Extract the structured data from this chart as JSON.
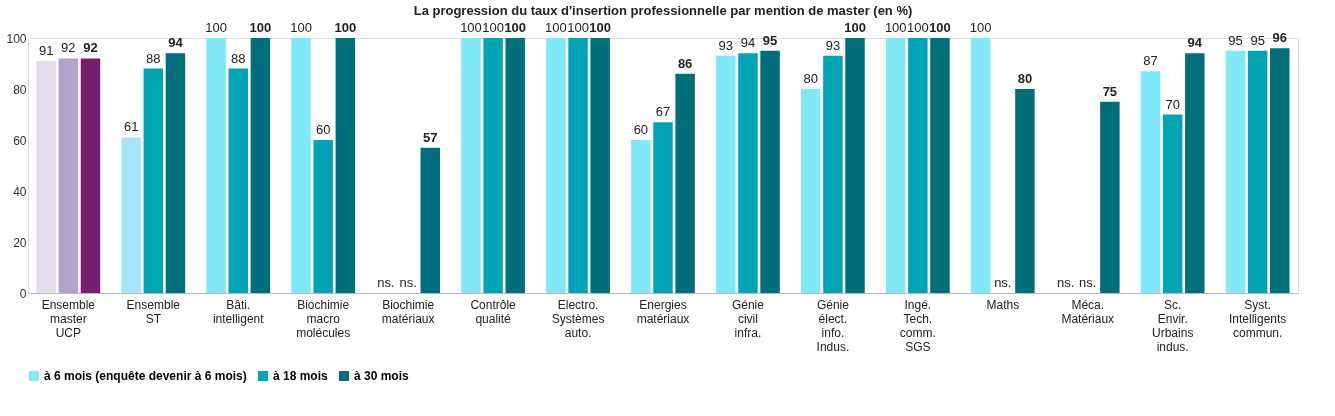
{
  "chart_data": {
    "type": "bar",
    "title": "La progression du taux d'insertion professionnelle  par mention de master (en %)",
    "categories": [
      "Ensemble\nmaster\nUCP",
      "Ensemble\nST",
      "Bâti.\nintelligent",
      "Biochimie\nmacro\nmolécules",
      "Biochimie\nmatériaux",
      "Contrôle\nqualité",
      "Electro.\nSystèmes\nauto.",
      "Energies\nmatériaux",
      "Génie\ncivil\ninfra.",
      "Génie\nélect.\ninfo.\nIndus.",
      "Ingé.\nTech.\ncomm.\nSGS",
      "Maths",
      "Méca.\nMatériaux",
      "Sc.\nEnvir.\nUrbains\nindus.",
      "Syst.\nIntelligents\ncommun."
    ],
    "series": [
      {
        "name": "à 6 mois (enquête devenir à 6 mois)",
        "color": "#7fe9f7",
        "colors": [
          "#e3dcea",
          "#a9e3f7",
          "#7fe9f7",
          "#7fe9f7",
          "#7fe9f7",
          "#7fe9f7",
          "#7fe9f7",
          "#7fe9f7",
          "#7fe9f7",
          "#7fe9f7",
          "#7fe9f7",
          "#7fe9f7",
          "#7fe9f7",
          "#7fe9f7",
          "#7fe9f7"
        ],
        "values": [
          91,
          61,
          100,
          100,
          null,
          100,
          100,
          60,
          93,
          80,
          100,
          100,
          null,
          87,
          95
        ],
        "value_labels": [
          "91",
          "61",
          "100",
          "100",
          "ns.",
          "100",
          "100",
          "60",
          "93",
          "80",
          "100",
          "100",
          "ns.",
          "87",
          "95"
        ]
      },
      {
        "name": "à 18 mois",
        "color": "#00a4b4",
        "colors": [
          "#b3a2c9",
          "#00a4b4",
          "#00a4b4",
          "#00a4b4",
          "#00a4b4",
          "#00a4b4",
          "#00a4b4",
          "#00a4b4",
          "#00a4b4",
          "#00a4b4",
          "#00a4b4",
          "#00a4b4",
          "#00a4b4",
          "#00a4b4",
          "#00a4b4"
        ],
        "values": [
          92,
          88,
          88,
          60,
          null,
          100,
          100,
          67,
          94,
          93,
          100,
          null,
          null,
          70,
          95
        ],
        "value_labels": [
          "92",
          "88",
          "88",
          "60",
          "ns.",
          "100",
          "100",
          "67",
          "94",
          "93",
          "100",
          "ns.",
          "ns.",
          "70",
          "95"
        ]
      },
      {
        "name": "à 30 mois",
        "color": "#006f7a",
        "colors": [
          "#771c6e",
          "#006f7a",
          "#006f7a",
          "#006f7a",
          "#006f7a",
          "#006f7a",
          "#006f7a",
          "#006f7a",
          "#006f7a",
          "#006f7a",
          "#006f7a",
          "#006f7a",
          "#006f7a",
          "#006f7a",
          "#006f7a"
        ],
        "values": [
          92,
          94,
          100,
          100,
          57,
          100,
          100,
          86,
          95,
          100,
          100,
          80,
          75,
          94,
          96
        ],
        "value_labels": [
          "92",
          "94",
          "100",
          "100",
          "57",
          "100",
          "100",
          "86",
          "95",
          "100",
          "100",
          "80",
          "75",
          "94",
          "96"
        ]
      }
    ],
    "ylim": [
      0,
      100
    ],
    "yticks": [
      0,
      20,
      40,
      60,
      80,
      100
    ],
    "grid": false,
    "legend": "bottom"
  }
}
